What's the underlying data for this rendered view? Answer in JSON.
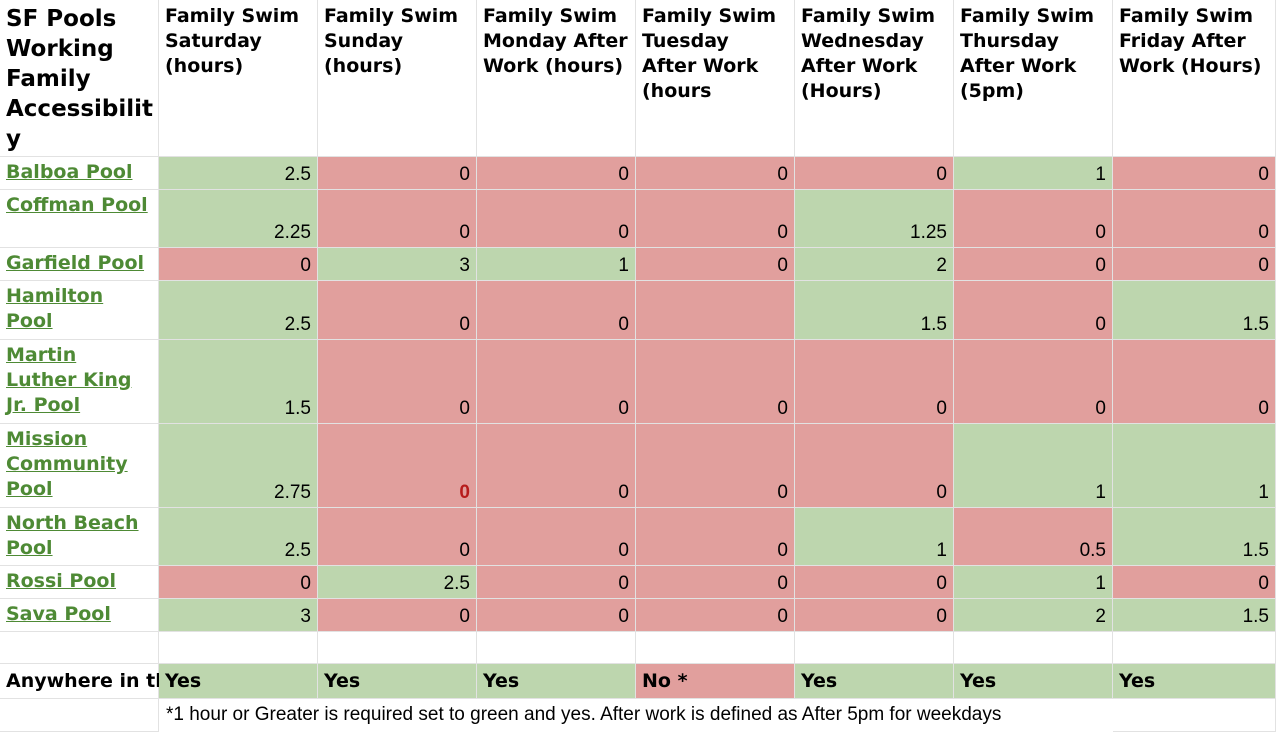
{
  "corner_title": "SF Pools Working Family Accessibility",
  "corner_title_display": [
    "SF Pools",
    "Working",
    "Family",
    "Accessibilit",
    "y"
  ],
  "columns": [
    {
      "label": "Family Swim Saturday (hours)"
    },
    {
      "label": "Family Swim Sunday (hours)"
    },
    {
      "label": "Family Swim Monday After Work (hours)"
    },
    {
      "label": "Family Swim Tuesday After Work (hours"
    },
    {
      "label": "Family Swim Wednesday After Work (Hours)"
    },
    {
      "label": "Family Swim Thursday After Work (5pm)"
    },
    {
      "label": "Family Swim Friday After Work (Hours)"
    }
  ],
  "rows": [
    {
      "name": "Balboa Pool",
      "values": [
        "2.5",
        "0",
        "0",
        "0",
        "0",
        "1",
        "0"
      ],
      "status": [
        "green",
        "red",
        "red",
        "red",
        "red",
        "green",
        "red"
      ]
    },
    {
      "name": "Coffman Pool",
      "values": [
        "2.25",
        "0",
        "0",
        "0",
        "1.25",
        "0",
        "0"
      ],
      "status": [
        "green",
        "red",
        "red",
        "red",
        "green",
        "red",
        "red"
      ]
    },
    {
      "name": "Garfield Pool",
      "values": [
        "0",
        "3",
        "1",
        "0",
        "2",
        "0",
        "0"
      ],
      "status": [
        "red",
        "green",
        "green",
        "red",
        "green",
        "red",
        "red"
      ]
    },
    {
      "name": "Hamilton Pool",
      "values": [
        "2.5",
        "0",
        "0",
        "",
        "1.5",
        "0",
        "1.5"
      ],
      "status": [
        "green",
        "red",
        "red",
        "red",
        "green",
        "red",
        "green"
      ]
    },
    {
      "name": "Martin Luther King Jr. Pool",
      "values": [
        "1.5",
        "0",
        "0",
        "0",
        "0",
        "0",
        "0"
      ],
      "status": [
        "green",
        "red",
        "red",
        "red",
        "red",
        "red",
        "red"
      ]
    },
    {
      "name": "Mission Community Pool",
      "values": [
        "2.75",
        "0",
        "0",
        "0",
        "0",
        "1",
        "1"
      ],
      "status": [
        "green",
        "red",
        "red",
        "red",
        "red",
        "green",
        "green"
      ]
    },
    {
      "name": "North Beach Pool",
      "values": [
        "2.5",
        "0",
        "0",
        "0",
        "1",
        "0.5",
        "1.5"
      ],
      "status": [
        "green",
        "red",
        "red",
        "red",
        "green",
        "red",
        "green"
      ]
    },
    {
      "name": "Rossi Pool",
      "values": [
        "0",
        "2.5",
        "0",
        "0",
        "0",
        "1",
        "0"
      ],
      "status": [
        "red",
        "green",
        "red",
        "red",
        "red",
        "green",
        "red"
      ]
    },
    {
      "name": "Sava Pool",
      "values": [
        "3",
        "0",
        "0",
        "0",
        "0",
        "2",
        "1.5"
      ],
      "status": [
        "green",
        "red",
        "red",
        "red",
        "red",
        "green",
        "green"
      ]
    }
  ],
  "summary": {
    "label": "Anywhere in th",
    "values": [
      "Yes",
      "Yes",
      "Yes",
      "No *",
      "Yes",
      "Yes",
      "Yes"
    ],
    "status": [
      "green",
      "green",
      "green",
      "red",
      "green",
      "green",
      "green"
    ]
  },
  "footnote": "*1 hour or Greater is required set to green and yes. After work is defined as After 5pm for weekdays",
  "colors": {
    "green": "#bdd6ae",
    "red": "#e19f9d",
    "link_green": "#4e8a35",
    "alert_red": "#b71c1c"
  }
}
